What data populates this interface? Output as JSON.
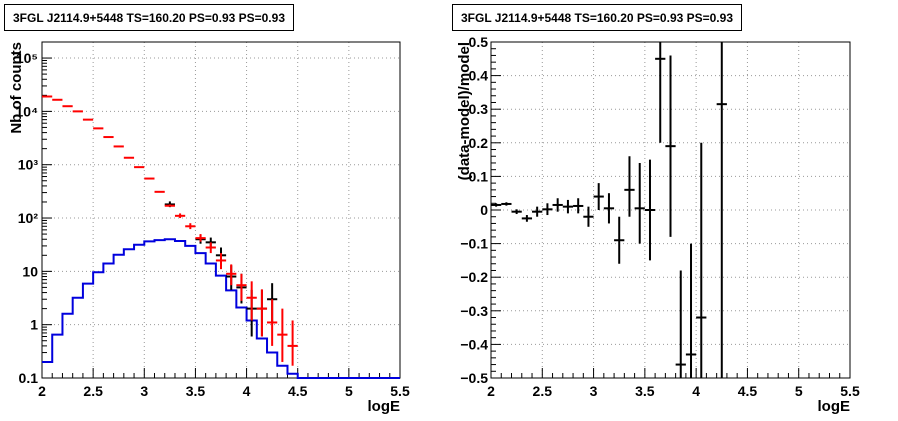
{
  "chart_data": [
    {
      "type": "line",
      "title": "3FGL J2114.9+5448 TS=160.20 PS=0.93 PS=0.93",
      "xlabel": "logE",
      "ylabel": "Nb of counts",
      "xlim": [
        2,
        5.5
      ],
      "ylim": [
        0.1,
        200000
      ],
      "yscale": "log",
      "grid": true,
      "x_ticks": [
        "2",
        "2.5",
        "3",
        "3.5",
        "4",
        "4.5",
        "5",
        "5.5"
      ],
      "y_ticks": [
        "0.1",
        "1",
        "10",
        "10²",
        "10³",
        "10⁴",
        "10⁵"
      ],
      "model_color": "#ff0000",
      "data_color": "#000000",
      "source_color": "#0000dd",
      "model_points": {
        "x": [
          2.05,
          2.15,
          2.25,
          2.35,
          2.45,
          2.55,
          2.65,
          2.75,
          2.85,
          2.95,
          3.05,
          3.15,
          3.25,
          3.35,
          3.45,
          3.55,
          3.65,
          3.75,
          3.85,
          3.95,
          4.05,
          4.15,
          4.25,
          4.35,
          4.45
        ],
        "y": [
          19000,
          16500,
          12500,
          10000,
          7000,
          4800,
          3300,
          2200,
          1350,
          900,
          550,
          310,
          170,
          110,
          70,
          42,
          28,
          16,
          9,
          5.5,
          3.2,
          2,
          1.1,
          0.65,
          0.4
        ],
        "err_low": [
          19000,
          16500,
          12500,
          10000,
          7000,
          4800,
          3300,
          2200,
          1350,
          900,
          550,
          310,
          165,
          100,
          62,
          36,
          22,
          11,
          5.5,
          2.8,
          1.2,
          0.6,
          0.4,
          0.2,
          0.17
        ],
        "err_high": [
          19000,
          16500,
          12500,
          10000,
          7000,
          4800,
          3300,
          2200,
          1350,
          900,
          550,
          310,
          180,
          122,
          80,
          50,
          35,
          22,
          13.5,
          9,
          6.5,
          4.6,
          3,
          2,
          1.2
        ]
      },
      "data_points": {
        "x": [
          3.25,
          3.55,
          3.65,
          3.75,
          3.85,
          3.95,
          4.05,
          4.15,
          4.25
        ],
        "y": [
          180,
          40,
          35,
          20,
          8,
          5,
          2,
          2,
          3
        ],
        "err_low": [
          160,
          33,
          28,
          14,
          4.5,
          2.5,
          0.6,
          0.6,
          1.1
        ],
        "err_high": [
          205,
          48,
          43,
          28,
          13,
          9,
          4.5,
          4.5,
          6
        ]
      },
      "source_histogram": {
        "edges": [
          2.0,
          2.1,
          2.2,
          2.3,
          2.4,
          2.5,
          2.6,
          2.7,
          2.8,
          2.9,
          3.0,
          3.1,
          3.2,
          3.3,
          3.4,
          3.5,
          3.6,
          3.7,
          3.8,
          3.9,
          4.0,
          4.1,
          4.2,
          4.3,
          4.4,
          4.5,
          5.5
        ],
        "values": [
          0.2,
          0.65,
          1.6,
          3.2,
          5.9,
          9.6,
          14,
          20.5,
          26,
          31.5,
          36.5,
          38.5,
          40,
          37,
          30,
          22,
          14,
          8.3,
          4.4,
          2.1,
          1.2,
          0.55,
          0.3,
          0.17,
          0.12,
          0.1
        ]
      }
    },
    {
      "type": "scatter",
      "title": "3FGL J2114.9+5448 TS=160.20 PS=0.93 PS=0.93",
      "xlabel": "logE",
      "ylabel": "(data-model)/model",
      "xlim": [
        2,
        5.5
      ],
      "ylim": [
        -0.5,
        0.5
      ],
      "grid": true,
      "x_ticks": [
        "2",
        "2.5",
        "3",
        "3.5",
        "4",
        "4.5",
        "5",
        "5.5"
      ],
      "y_ticks": [
        "−0.5",
        "−0.4",
        "−0.3",
        "−0.2",
        "−0.1",
        "0",
        "0.1",
        "0.2",
        "0.3",
        "0.4",
        "0.5"
      ],
      "series": [
        {
          "x": [
            2.05,
            2.15,
            2.25,
            2.35,
            2.45,
            2.55,
            2.65,
            2.75,
            2.85,
            2.95,
            3.05,
            3.15,
            3.25,
            3.35,
            3.45,
            3.55,
            3.65,
            3.75,
            3.85,
            3.95,
            4.05,
            4.25
          ],
          "y": [
            0.015,
            0.018,
            -0.005,
            -0.025,
            -0.005,
            0.002,
            0.015,
            0.01,
            0.012,
            -0.02,
            0.04,
            0.005,
            -0.09,
            0.06,
            0.005,
            0.0,
            0.45,
            0.19,
            -0.46,
            -0.43,
            -0.32,
            0.315
          ],
          "low": [
            0.01,
            0.013,
            -0.012,
            -0.035,
            -0.02,
            -0.015,
            -0.005,
            -0.01,
            -0.01,
            -0.05,
            0.0,
            -0.04,
            -0.16,
            -0.02,
            -0.1,
            -0.15,
            0.2,
            -0.08,
            -0.5,
            -0.5,
            -0.5,
            -0.5
          ],
          "high": [
            0.02,
            0.023,
            0.002,
            -0.015,
            0.01,
            0.02,
            0.035,
            0.03,
            0.035,
            0.01,
            0.08,
            0.05,
            -0.02,
            0.16,
            0.14,
            0.15,
            0.5,
            0.46,
            -0.18,
            -0.1,
            0.2,
            0.5
          ]
        }
      ]
    }
  ]
}
